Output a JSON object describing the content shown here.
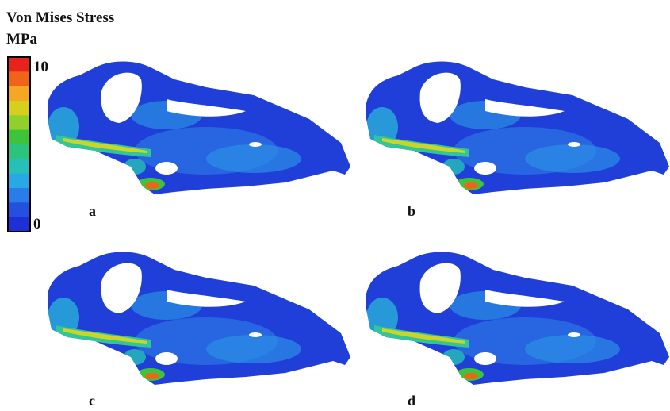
{
  "legend": {
    "title": "Von Mises Stress",
    "unit": "MPa",
    "range": [
      0,
      10
    ],
    "ticks": [
      10,
      0
    ],
    "colors": [
      "#e8231c",
      "#f0641a",
      "#f5a623",
      "#d6cf1e",
      "#8fd12a",
      "#3dc43a",
      "#2bc47a",
      "#25c0b8",
      "#27a9e6",
      "#2a7de8",
      "#2450e0",
      "#1f2fd6"
    ]
  },
  "panels": [
    "a",
    "b",
    "c",
    "d"
  ]
}
